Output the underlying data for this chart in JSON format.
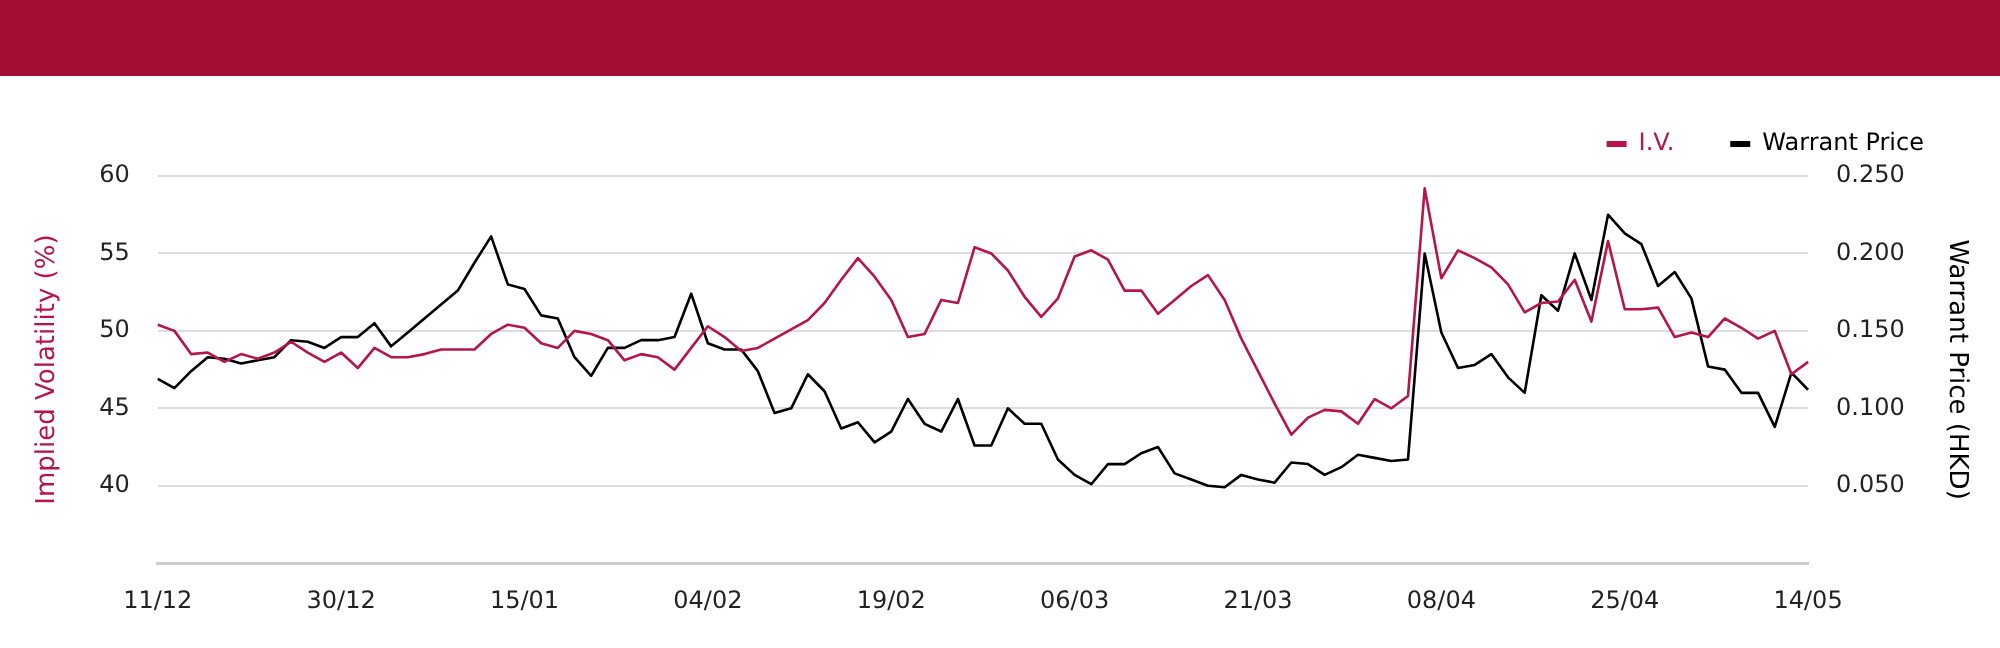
{
  "chart_data": {
    "type": "line",
    "ylabel": "Implied Volatility (%)",
    "y2label": "Warrant Price (HKD)",
    "categories": [
      "11/12",
      null,
      null,
      null,
      null,
      null,
      null,
      null,
      null,
      null,
      null,
      "30/12",
      null,
      null,
      null,
      null,
      null,
      null,
      null,
      null,
      null,
      null,
      "15/01",
      null,
      null,
      null,
      null,
      null,
      null,
      null,
      null,
      null,
      null,
      "04/02",
      null,
      null,
      null,
      null,
      null,
      null,
      null,
      null,
      null,
      null,
      "19/02",
      null,
      null,
      null,
      null,
      null,
      null,
      null,
      null,
      null,
      null,
      "06/03",
      null,
      null,
      null,
      null,
      null,
      null,
      null,
      null,
      null,
      null,
      "21/03",
      null,
      null,
      null,
      null,
      null,
      null,
      null,
      null,
      null,
      null,
      "08/04",
      null,
      null,
      null,
      null,
      null,
      null,
      null,
      null,
      null,
      null,
      "25/04",
      null,
      null,
      null,
      null,
      null,
      null,
      null,
      null,
      null,
      null,
      "14/05"
    ],
    "series": [
      {
        "name": "I.V.",
        "color": "#b5154a",
        "values": [
          50.4,
          50.0,
          48.5,
          48.6,
          48.0,
          48.5,
          48.2,
          48.6,
          49.3,
          48.6,
          48.0,
          48.6,
          47.6,
          48.9,
          48.3,
          48.3,
          48.5,
          48.8,
          48.8,
          48.8,
          49.8,
          50.4,
          50.2,
          49.2,
          48.9,
          50.0,
          49.8,
          49.4,
          48.1,
          48.5,
          48.3,
          47.5,
          48.9,
          50.3,
          49.6,
          48.7,
          48.9,
          49.5,
          50.1,
          50.7,
          51.8,
          53.3,
          54.7,
          53.5,
          52.0,
          49.6,
          49.8,
          52.0,
          51.8,
          55.4,
          55.0,
          53.9,
          52.2,
          50.9,
          52.1,
          54.8,
          55.2,
          54.6,
          52.6,
          52.6,
          51.1,
          52.0,
          52.9,
          53.6,
          52.0,
          49.5,
          47.4,
          45.3,
          43.3,
          44.4,
          44.9,
          44.8,
          44.0,
          45.6,
          45.0,
          45.8,
          59.2,
          53.4,
          55.2,
          54.7,
          54.1,
          53.0,
          51.2,
          51.8,
          51.9,
          53.3,
          50.6,
          55.8,
          51.4,
          51.4,
          51.5,
          49.6,
          49.9,
          49.6,
          50.8,
          50.2,
          49.5,
          50.0,
          47.2,
          48.0
        ]
      },
      {
        "name": "Warrant Price",
        "color": "#000000",
        "axis": "y2",
        "values": [
          0.119,
          0.113,
          0.124,
          0.133,
          0.132,
          0.129,
          0.131,
          0.133,
          0.144,
          0.143,
          0.139,
          0.146,
          0.146,
          0.155,
          0.14,
          0.149,
          0.158,
          0.167,
          0.176,
          0.194,
          0.211,
          0.18,
          0.177,
          0.16,
          0.158,
          0.133,
          0.121,
          0.139,
          0.139,
          0.144,
          0.144,
          0.146,
          0.174,
          0.142,
          0.138,
          0.138,
          0.124,
          0.097,
          0.1,
          0.122,
          0.111,
          0.087,
          0.091,
          0.078,
          0.085,
          0.106,
          0.09,
          0.085,
          0.106,
          0.076,
          0.076,
          0.1,
          0.09,
          0.09,
          0.067,
          0.057,
          0.051,
          0.064,
          0.064,
          0.071,
          0.075,
          0.058,
          0.054,
          0.05,
          0.049,
          0.057,
          0.054,
          0.052,
          0.065,
          0.064,
          0.057,
          0.062,
          0.07,
          0.068,
          0.066,
          0.067,
          0.2,
          0.149,
          0.126,
          0.128,
          0.135,
          0.12,
          0.11,
          0.173,
          0.163,
          0.2,
          0.17,
          0.225,
          0.213,
          0.206,
          0.179,
          0.188,
          0.171,
          0.127,
          0.125,
          0.11,
          0.11,
          0.088,
          0.123,
          0.112
        ]
      }
    ],
    "ylim": [
      35,
      60
    ],
    "yticks": [
      40,
      45,
      50,
      55,
      60
    ],
    "y2lim": [
      0,
      0.25
    ],
    "y2ticks": [
      {
        "value": 0.05,
        "label": "0.050"
      },
      {
        "value": 0.1,
        "label": "0.100"
      },
      {
        "value": 0.15,
        "label": "0.150"
      },
      {
        "value": 0.2,
        "label": "0.200"
      },
      {
        "value": 0.25,
        "label": "0.250"
      }
    ],
    "grid": "y",
    "legend": "top right",
    "marker": "none"
  }
}
